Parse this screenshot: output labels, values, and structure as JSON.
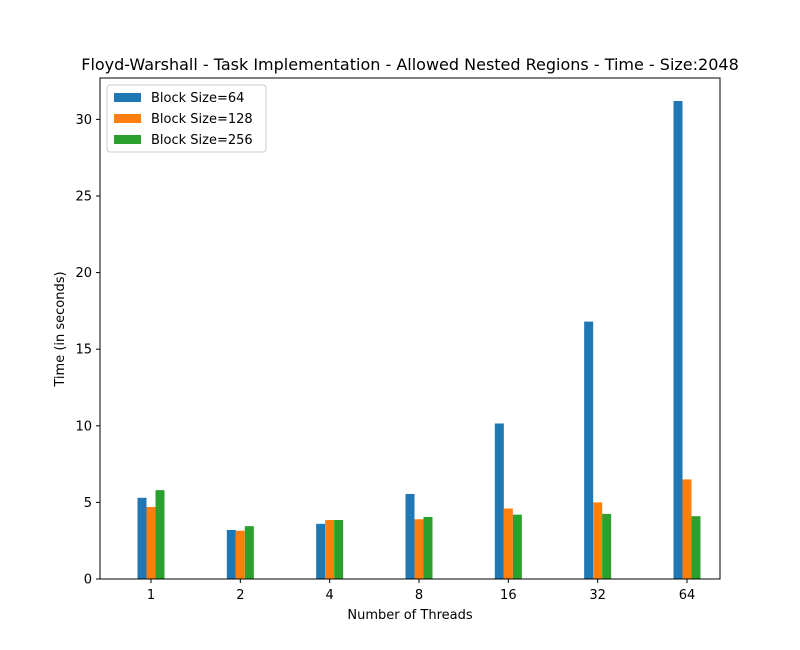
{
  "chart_data": {
    "type": "bar",
    "title": "Floyd-Warshall - Task Implementation - Allowed Nested Regions - Time - Size:2048",
    "xlabel": "Number of Threads",
    "ylabel": "Time (in seconds)",
    "categories": [
      "1",
      "2",
      "4",
      "8",
      "16",
      "32",
      "64"
    ],
    "series": [
      {
        "name": "Block Size=64",
        "color": "#1f77b4",
        "values": [
          5.3,
          3.2,
          3.6,
          5.55,
          10.15,
          16.8,
          31.2
        ]
      },
      {
        "name": "Block Size=128",
        "color": "#ff7f0e",
        "values": [
          4.7,
          3.15,
          3.85,
          3.9,
          4.6,
          5.0,
          6.5
        ]
      },
      {
        "name": "Block Size=256",
        "color": "#2ca02c",
        "values": [
          5.8,
          3.45,
          3.85,
          4.05,
          4.2,
          4.25,
          4.1
        ]
      }
    ],
    "ylim": [
      0,
      32.7
    ],
    "yticks": [
      0,
      5,
      10,
      15,
      20,
      25,
      30
    ],
    "grid": false,
    "legend_position": "top-left"
  }
}
